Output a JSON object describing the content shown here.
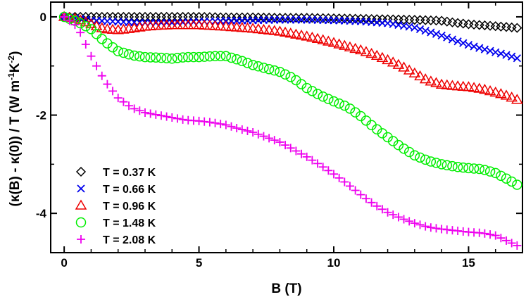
{
  "chart_data": {
    "type": "scatter",
    "title": "",
    "xlabel": "B (T)",
    "ylabel_parts": [
      "(κ(B) - κ(0)) / T   (W m",
      "-1",
      "K",
      "-2",
      ")"
    ],
    "xlim": [
      -0.5,
      17.0
    ],
    "ylim": [
      -4.8,
      0.3
    ],
    "xticks": [
      0,
      5,
      10,
      15
    ],
    "yticks": [
      0,
      -2,
      -4
    ],
    "xtick_labels": [
      "0",
      "5",
      "10",
      "15"
    ],
    "ytick_labels": [
      "0",
      "-2",
      "-4"
    ],
    "legend_position": "bottom-left",
    "series": [
      {
        "name": "T = 0.37 K",
        "marker": "diamond",
        "color": "#000000",
        "x": [
          0,
          0.5,
          1,
          2,
          3,
          4,
          5,
          6,
          7,
          8,
          9,
          10,
          11,
          12,
          13,
          14,
          14.5,
          15,
          15.5,
          16,
          16.5,
          16.9
        ],
        "y": [
          0,
          0,
          0,
          0,
          0,
          0,
          0,
          -0.01,
          -0.01,
          -0.02,
          -0.02,
          -0.03,
          -0.04,
          -0.05,
          -0.06,
          -0.08,
          -0.12,
          -0.15,
          -0.17,
          -0.19,
          -0.21,
          -0.23
        ]
      },
      {
        "name": "T = 0.66 K",
        "marker": "x",
        "color": "#0000ee",
        "x": [
          0,
          0.5,
          1,
          2,
          3,
          4,
          5,
          6,
          7,
          8,
          9,
          10,
          11,
          12,
          13,
          14,
          14.5,
          15,
          15.5,
          16,
          16.5,
          16.9
        ],
        "y": [
          0,
          -0.03,
          -0.07,
          -0.1,
          -0.12,
          -0.12,
          -0.1,
          -0.08,
          -0.07,
          -0.06,
          -0.06,
          -0.07,
          -0.09,
          -0.13,
          -0.22,
          -0.38,
          -0.48,
          -0.57,
          -0.65,
          -0.72,
          -0.79,
          -0.86
        ]
      },
      {
        "name": "T = 0.96 K",
        "marker": "triangle",
        "color": "#ee0000",
        "x": [
          0,
          0.5,
          1,
          1.5,
          2,
          2.5,
          3,
          3.5,
          4,
          5,
          6,
          6.5,
          7,
          7.5,
          8,
          8.5,
          9,
          9.5,
          10,
          11,
          11.5,
          12,
          12.5,
          13,
          13.5,
          14,
          14.5,
          15,
          15.5,
          16,
          16.5,
          16.9
        ],
        "y": [
          0,
          -0.05,
          -0.15,
          -0.25,
          -0.27,
          -0.24,
          -0.2,
          -0.18,
          -0.17,
          -0.17,
          -0.2,
          -0.22,
          -0.24,
          -0.27,
          -0.3,
          -0.35,
          -0.4,
          -0.46,
          -0.53,
          -0.68,
          -0.77,
          -0.88,
          -1.0,
          -1.15,
          -1.3,
          -1.38,
          -1.41,
          -1.43,
          -1.47,
          -1.54,
          -1.62,
          -1.71
        ]
      },
      {
        "name": "T = 1.48 K",
        "marker": "circle",
        "color": "#00ee00",
        "x": [
          0,
          0.5,
          1,
          1.5,
          2,
          2.5,
          3,
          3.5,
          4,
          4.5,
          5,
          5.5,
          6,
          6.5,
          7,
          7.5,
          8,
          8.5,
          9,
          9.5,
          10,
          10.5,
          11,
          11.5,
          12,
          12.5,
          13,
          13.5,
          14,
          14.5,
          15,
          15.5,
          16,
          16.5,
          16.9
        ],
        "y": [
          0,
          -0.1,
          -0.25,
          -0.5,
          -0.7,
          -0.78,
          -0.82,
          -0.83,
          -0.85,
          -0.82,
          -0.82,
          -0.8,
          -0.8,
          -0.88,
          -0.98,
          -1.05,
          -1.12,
          -1.25,
          -1.45,
          -1.6,
          -1.72,
          -1.83,
          -2.02,
          -2.25,
          -2.45,
          -2.65,
          -2.82,
          -2.93,
          -3.0,
          -3.05,
          -3.08,
          -3.1,
          -3.18,
          -3.32,
          -3.45
        ]
      },
      {
        "name": "T = 2.08 K",
        "marker": "plus",
        "color": "#ee00ee",
        "x": [
          0,
          0.5,
          1,
          1.5,
          2,
          2.5,
          3,
          3.5,
          4,
          4.5,
          5,
          5.5,
          6,
          6.5,
          7,
          7.5,
          8,
          8.5,
          9,
          9.5,
          10,
          10.5,
          11,
          11.5,
          12,
          12.5,
          13,
          13.5,
          14,
          14.5,
          15,
          15.5,
          16,
          16.5,
          16.9
        ],
        "y": [
          0,
          -0.2,
          -0.8,
          -1.3,
          -1.65,
          -1.85,
          -1.95,
          -2.0,
          -2.05,
          -2.1,
          -2.12,
          -2.15,
          -2.2,
          -2.28,
          -2.35,
          -2.45,
          -2.55,
          -2.7,
          -2.85,
          -3.02,
          -3.2,
          -3.4,
          -3.62,
          -3.82,
          -3.98,
          -4.1,
          -4.2,
          -4.28,
          -4.32,
          -4.35,
          -4.38,
          -4.4,
          -4.45,
          -4.58,
          -4.68
        ]
      }
    ]
  }
}
